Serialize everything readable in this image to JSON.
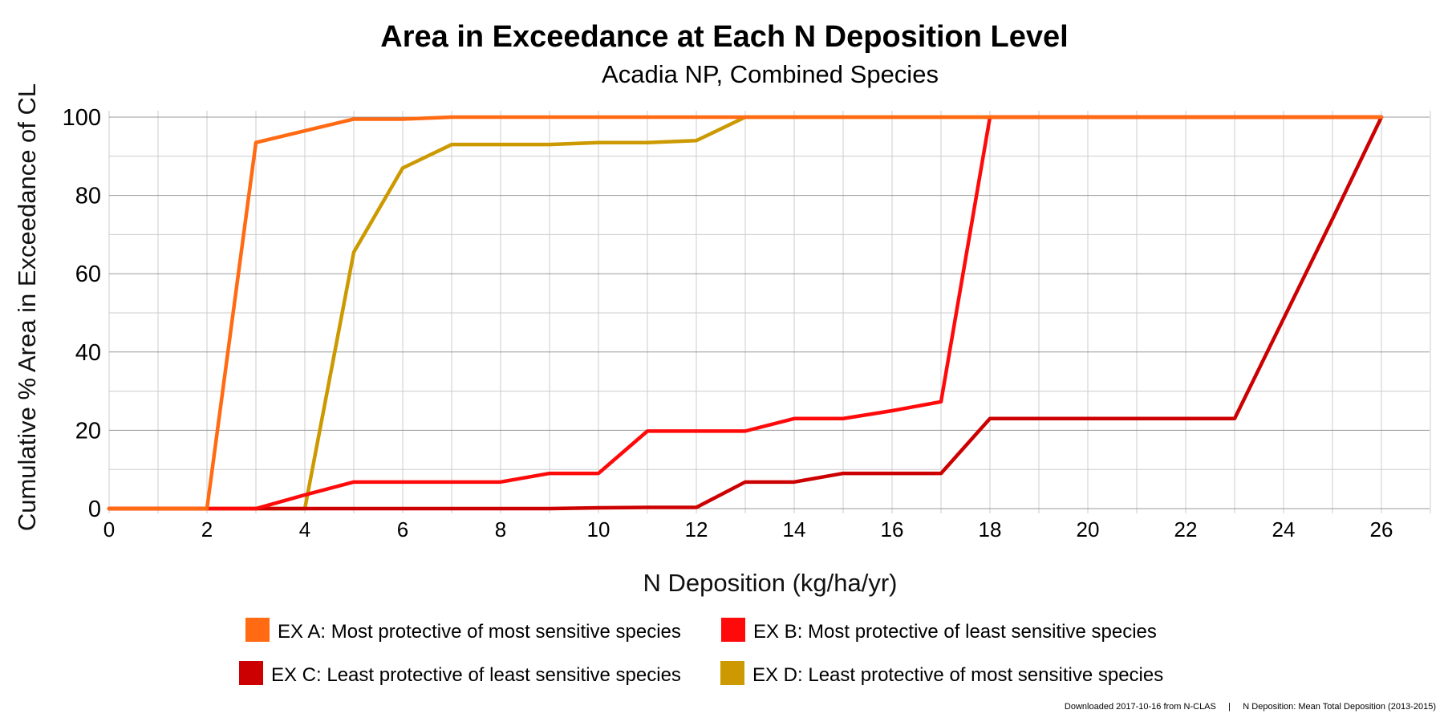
{
  "chart_data": {
    "type": "line",
    "title": "Area in Exceedance at Each N Deposition Level",
    "subtitle": "Acadia NP, Combined Species",
    "xlabel": "N Deposition (kg/ha/yr)",
    "ylabel": "Cumulative % Area in Exceedance of CL",
    "xlim": [
      0,
      27
    ],
    "ylim": [
      0,
      100
    ],
    "xticks": [
      0,
      2,
      4,
      6,
      8,
      10,
      12,
      14,
      16,
      18,
      20,
      22,
      24,
      26
    ],
    "yticks": [
      0,
      20,
      40,
      60,
      80,
      100
    ],
    "grid": true,
    "legend_position": "bottom",
    "series": [
      {
        "name": "EX A: Most protective of most sensitive species",
        "color": "#ff6a13",
        "x": [
          0,
          1,
          2,
          3,
          4,
          5,
          6,
          7,
          8,
          9,
          10,
          11,
          12,
          13,
          14,
          15,
          16,
          17,
          18,
          19,
          20,
          21,
          22,
          23,
          24,
          25,
          26
        ],
        "y": [
          0,
          0,
          0,
          93.5,
          96.5,
          99.5,
          99.5,
          100,
          100,
          100,
          100,
          100,
          100,
          100,
          100,
          100,
          100,
          100,
          100,
          100,
          100,
          100,
          100,
          100,
          100,
          100,
          100
        ]
      },
      {
        "name": "EX B: Most protective of least sensitive species",
        "color": "#ff0a0a",
        "x": [
          0,
          1,
          2,
          3,
          4,
          5,
          6,
          7,
          8,
          9,
          10,
          11,
          12,
          13,
          14,
          15,
          16,
          17,
          18,
          19,
          20,
          21,
          22,
          23,
          24,
          25,
          26
        ],
        "y": [
          0,
          0,
          0,
          0,
          3.5,
          6.8,
          6.8,
          6.8,
          6.8,
          9,
          9,
          19.8,
          19.8,
          19.8,
          23,
          23,
          25,
          27.3,
          100,
          100,
          100,
          100,
          100,
          100,
          100,
          100,
          100
        ]
      },
      {
        "name": "EX C: Least protective of least sensitive species",
        "color": "#cc0000",
        "x": [
          0,
          1,
          2,
          3,
          4,
          5,
          6,
          7,
          8,
          9,
          10,
          11,
          12,
          13,
          14,
          15,
          16,
          17,
          18,
          19,
          20,
          21,
          22,
          23,
          24,
          25,
          26
        ],
        "y": [
          0,
          0,
          0,
          0,
          0,
          0,
          0,
          0,
          0,
          0,
          0.2,
          0.3,
          0.3,
          6.8,
          6.8,
          9,
          9,
          9,
          23,
          23,
          23,
          23,
          23,
          23,
          48.5,
          74,
          100
        ]
      },
      {
        "name": "EX D: Least protective of most sensitive species",
        "color": "#cc9900",
        "x": [
          0,
          1,
          2,
          3,
          4,
          5,
          6,
          7,
          8,
          9,
          10,
          11,
          12,
          13,
          14,
          15,
          16,
          17,
          18,
          19,
          20,
          21,
          22,
          23,
          24,
          25,
          26
        ],
        "y": [
          0,
          0,
          0,
          0,
          0,
          65.5,
          87,
          93,
          93,
          93,
          93.5,
          93.5,
          94,
          100,
          100,
          100,
          100,
          100,
          100,
          100,
          100,
          100,
          100,
          100,
          100,
          100,
          100
        ]
      }
    ],
    "footer": "Downloaded 2017-10-16 from N-CLAS     |     N Deposition: Mean Total Deposition (2013-2015)"
  }
}
